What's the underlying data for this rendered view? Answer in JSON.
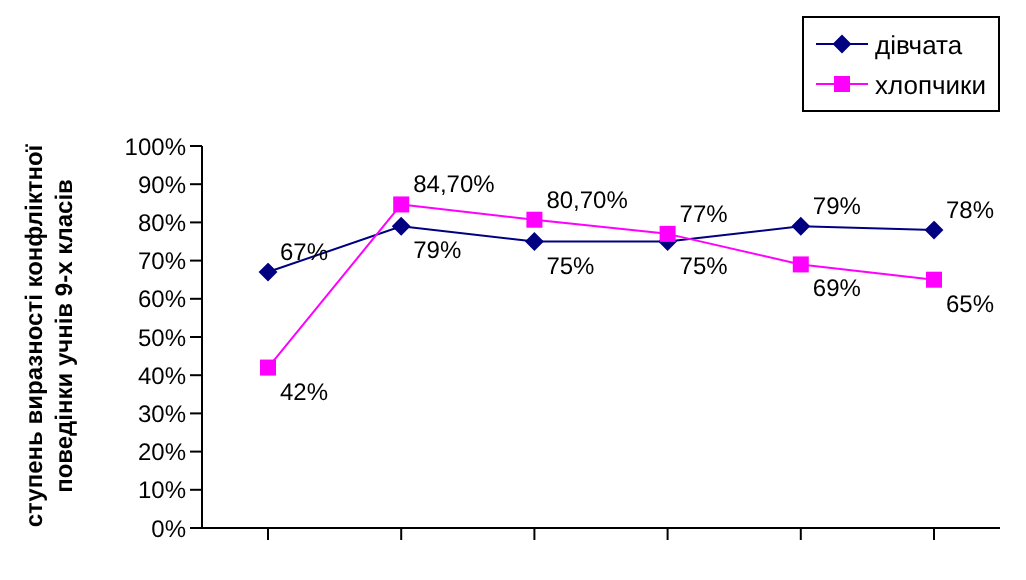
{
  "chart_data": {
    "type": "line",
    "ylabel": "ступень виразності конфліктної\nповедінки учнів 9-х класів",
    "categories": [
      null,
      null,
      null,
      null,
      null,
      null
    ],
    "series": [
      {
        "name": "дівчата",
        "color": "#000080",
        "marker": "diamond",
        "values": [
          67,
          79,
          75,
          75,
          79,
          78
        ],
        "value_labels": [
          "67%",
          "79%",
          "75%",
          "75%",
          "79%",
          "78%"
        ]
      },
      {
        "name": "хлопчики",
        "color": "#ff00ff",
        "marker": "square",
        "values": [
          42,
          84.7,
          80.7,
          77,
          69,
          65
        ],
        "value_labels": [
          "42%",
          "84,70%",
          "80,70%",
          "77%",
          "69%",
          "65%"
        ]
      }
    ],
    "ylim": [
      0,
      100
    ],
    "yticks": [
      {
        "value": 0,
        "label": "0%"
      },
      {
        "value": 10,
        "label": "10%"
      },
      {
        "value": 20,
        "label": "20%"
      },
      {
        "value": 30,
        "label": "30%"
      },
      {
        "value": 40,
        "label": "40%"
      },
      {
        "value": 50,
        "label": "50%"
      },
      {
        "value": 60,
        "label": "60%"
      },
      {
        "value": 70,
        "label": "70%"
      },
      {
        "value": 80,
        "label": "80%"
      },
      {
        "value": 90,
        "label": "90%"
      },
      {
        "value": 100,
        "label": "100%"
      }
    ],
    "grid": false,
    "legend": "top right",
    "line_style": "solid"
  }
}
